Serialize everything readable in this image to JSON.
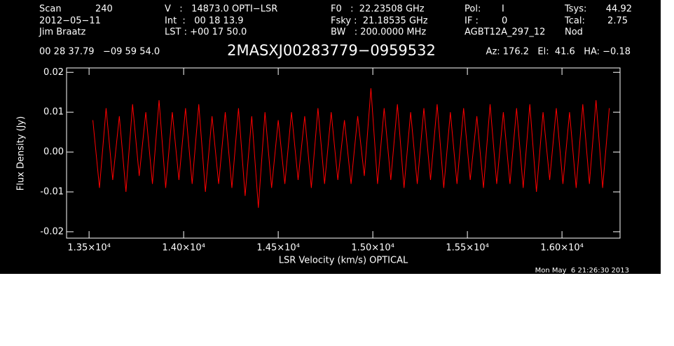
{
  "chart_data": {
    "type": "line",
    "title": "2MASXJ00283779−0959532",
    "header": [
      "Scan",
      "240",
      "V   :   14873.0 OPTI−LSR",
      "F0   :  22.23508 GHz",
      "Pol:",
      "I",
      "Tsys:",
      "44.92",
      "2012−05−11",
      "Int  :   00 18 13.9",
      "Fsky :  21.18535 GHz",
      "IF :",
      "0",
      "Tcal:",
      "2.75",
      "Jim Braatz",
      "LST : +00 17 50.0",
      "BW   : 200.0000 MHz",
      "AGBT12A_297_12",
      "Nod",
      "00 28 37.79   −09 59 54.0",
      "Az: 176.2   El:  41.6   HA: −0.18"
    ],
    "footer": "Mon May  6 21:26:30 2013",
    "xlabel": "LSR Velocity (km/s) OPTICAL",
    "ylabel": "Flux Density (Jy)",
    "xlim": [
      13381,
      16307
    ],
    "ylim": [
      -0.0216,
      0.0211
    ],
    "xticks": [
      {
        "value": 13500,
        "label": "1.35×10⁴"
      },
      {
        "value": 14000,
        "label": "1.40×10⁴"
      },
      {
        "value": 14500,
        "label": "1.45×10⁴"
      },
      {
        "value": 15000,
        "label": "1.50×10⁴"
      },
      {
        "value": 15500,
        "label": "1.55×10⁴"
      },
      {
        "value": 16000,
        "label": "1.60×10⁴"
      }
    ],
    "yticks": [
      0.02,
      0.01,
      {
        "value": 0,
        "label": "0.00"
      },
      -0.01,
      -0.02
    ],
    "x": [
      13520,
      13555,
      13590,
      13625,
      13660,
      13695,
      13730,
      13765,
      13800,
      13835,
      13870,
      13905,
      13940,
      13975,
      14010,
      14045,
      14080,
      14115,
      14150,
      14185,
      14220,
      14255,
      14290,
      14325,
      14360,
      14395,
      14430,
      14465,
      14500,
      14535,
      14570,
      14605,
      14640,
      14675,
      14710,
      14745,
      14780,
      14815,
      14850,
      14885,
      14920,
      14955,
      14990,
      15025,
      15060,
      15095,
      15130,
      15165,
      15200,
      15235,
      15270,
      15305,
      15340,
      15375,
      15410,
      15445,
      15480,
      15515,
      15550,
      15585,
      15620,
      15655,
      15690,
      15725,
      15760,
      15795,
      15830,
      15865,
      15900,
      15935,
      15970,
      16005,
      16040,
      16075,
      16110,
      16145,
      16180,
      16215,
      16250
    ],
    "series": [
      {
        "color": "#ff0000",
        "values": [
          0.008,
          -0.009,
          0.011,
          -0.007,
          0.009,
          -0.01,
          0.012,
          -0.006,
          0.01,
          -0.008,
          0.013,
          -0.009,
          0.01,
          -0.007,
          0.011,
          -0.008,
          0.012,
          -0.01,
          0.009,
          -0.008,
          0.01,
          -0.009,
          0.011,
          -0.011,
          0.009,
          -0.014,
          0.01,
          -0.009,
          0.008,
          -0.008,
          0.01,
          -0.007,
          0.009,
          -0.009,
          0.011,
          -0.008,
          0.01,
          -0.007,
          0.008,
          -0.008,
          0.009,
          -0.006,
          0.016,
          -0.008,
          0.011,
          -0.007,
          0.012,
          -0.009,
          0.01,
          -0.008,
          0.011,
          -0.007,
          0.012,
          -0.009,
          0.01,
          -0.008,
          0.011,
          -0.007,
          0.009,
          -0.009,
          0.012,
          -0.008,
          0.01,
          -0.008,
          0.011,
          -0.009,
          0.012,
          -0.01,
          0.01,
          -0.007,
          0.011,
          -0.008,
          0.01,
          -0.009,
          0.012,
          -0.008,
          0.013,
          -0.009,
          0.011
        ]
      }
    ]
  }
}
